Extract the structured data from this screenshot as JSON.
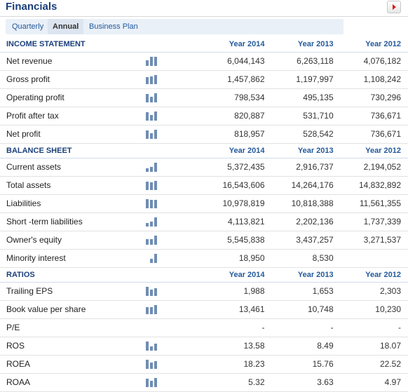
{
  "widget": {
    "title": "Financials"
  },
  "tabs": [
    {
      "label": "Quarterly",
      "active": false
    },
    {
      "label": "Annual",
      "active": true
    },
    {
      "label": "Business Plan",
      "active": false
    }
  ],
  "colors": {
    "title": "#1a3f7a",
    "header_text": "#245a9c",
    "sparkline": "#6f8db3",
    "tab_bar": "#e9f0f8",
    "collapse_arrow": "#d42020"
  },
  "icons": {
    "collapse": "collapse-arrow-icon",
    "trend": "bar-chart-icon"
  },
  "sections": [
    {
      "title": "INCOME STATEMENT",
      "years": [
        "Year 2014",
        "Year 2013",
        "Year 2012"
      ],
      "rows": [
        {
          "label": "Net revenue",
          "values": [
            "6,044,143",
            "6,263,118",
            "4,076,182"
          ]
        },
        {
          "label": "Gross profit",
          "values": [
            "1,457,862",
            "1,197,997",
            "1,108,242"
          ]
        },
        {
          "label": "Operating profit",
          "values": [
            "798,534",
            "495,135",
            "730,296"
          ]
        },
        {
          "label": "Profit after tax",
          "values": [
            "820,887",
            "531,710",
            "736,671"
          ]
        },
        {
          "label": "Net profit",
          "values": [
            "818,957",
            "528,542",
            "736,671"
          ]
        }
      ]
    },
    {
      "title": "BALANCE SHEET",
      "years": [
        "Year 2014",
        "Year 2013",
        "Year 2012"
      ],
      "rows": [
        {
          "label": "Current assets",
          "values": [
            "5,372,435",
            "2,916,737",
            "2,194,052"
          ]
        },
        {
          "label": "Total assets",
          "values": [
            "16,543,606",
            "14,264,176",
            "14,832,892"
          ]
        },
        {
          "label": "Liabilities",
          "values": [
            "10,978,819",
            "10,818,388",
            "11,561,355"
          ]
        },
        {
          "label": "Short -term liabilities",
          "values": [
            "4,113,821",
            "2,202,136",
            "1,737,339"
          ]
        },
        {
          "label": "Owner's equity",
          "values": [
            "5,545,838",
            "3,437,257",
            "3,271,537"
          ]
        },
        {
          "label": "Minority interest",
          "values": [
            "18,950",
            "8,530",
            ""
          ]
        }
      ]
    },
    {
      "title": "RATIOS",
      "years": [
        "Year 2014",
        "Year 2013",
        "Year 2012"
      ],
      "rows": [
        {
          "label": "Trailing EPS",
          "values": [
            "1,988",
            "1,653",
            "2,303"
          ]
        },
        {
          "label": "Book value per share",
          "values": [
            "13,461",
            "10,748",
            "10,230"
          ]
        },
        {
          "label": "P/E",
          "values": [
            "-",
            "-",
            "-"
          ]
        },
        {
          "label": "ROS",
          "values": [
            "13.58",
            "8.49",
            "18.07"
          ]
        },
        {
          "label": "ROEA",
          "values": [
            "18.23",
            "15.76",
            "22.52"
          ]
        },
        {
          "label": "ROAA",
          "values": [
            "5.32",
            "3.63",
            "4.97"
          ]
        }
      ]
    }
  ]
}
